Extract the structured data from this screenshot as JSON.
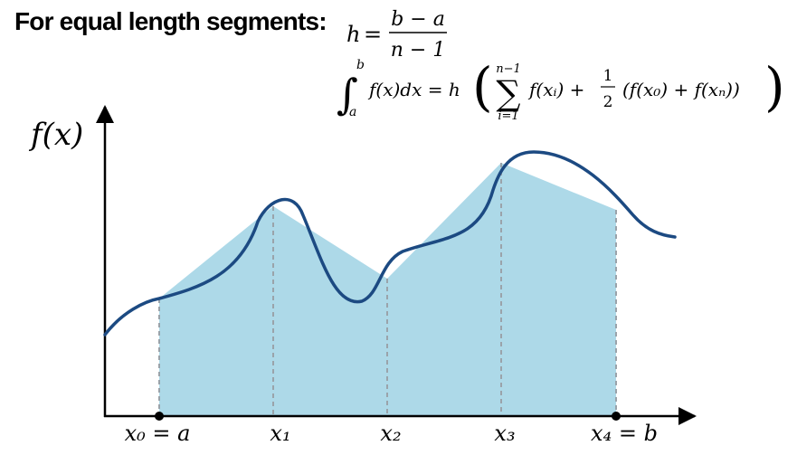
{
  "heading": "For equal length segments:",
  "formula_h": {
    "lhs": "h",
    "eq": "=",
    "num": "b − a",
    "den": "n − 1"
  },
  "formula_integral": {
    "upper": "b",
    "lower": "a",
    "integrand": "f(x)dx = h",
    "sum_upper": "n−1",
    "sum_lower": "i=1",
    "term1": "f(xᵢ) +",
    "half_num": "1",
    "half_den": "2",
    "term2": "(f(x₀) + f(xₙ))"
  },
  "y_axis_label": "f(x)",
  "x_tick_labels": [
    "x₀ = a",
    "x₁",
    "x₂",
    "x₃",
    "x₄ = b"
  ],
  "colors": {
    "curve": "#1c4a82",
    "trapezoid_fill": "#add9e8",
    "axis": "#000000",
    "dashed": "#9aa3aa"
  }
}
